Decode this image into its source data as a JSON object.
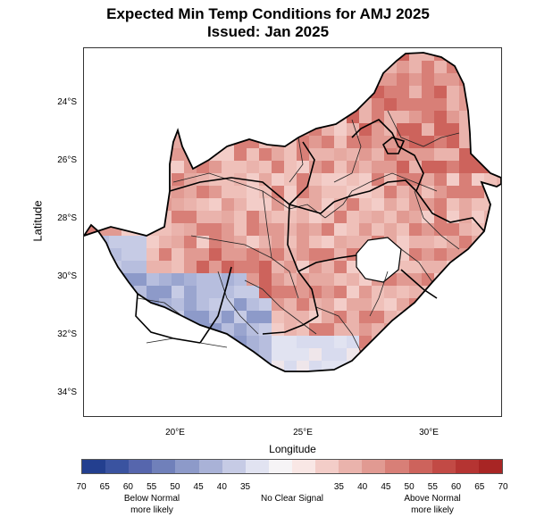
{
  "header": {
    "title_line1": "Expected Min Temp Conditions for AMJ 2025",
    "title_line2": "Issued: Jan 2025"
  },
  "map": {
    "y_axis_title": "Latitude",
    "x_axis_title": "Longitude",
    "y_ticks": [
      "24°S",
      "26°S",
      "28°S",
      "30°S",
      "32°S",
      "34°S"
    ],
    "x_ticks": [
      "20°E",
      "25°E",
      "30°E"
    ]
  },
  "legend": {
    "tick_labels": [
      "70",
      "65",
      "60",
      "55",
      "50",
      "45",
      "40",
      "35",
      "35",
      "40",
      "45",
      "50",
      "55",
      "60",
      "65",
      "70"
    ],
    "below_label": "Below Normal\nmore likely",
    "below_line1": "Below Normal",
    "below_line2": "more likely",
    "center_label": "No Clear Signal",
    "above_line1": "Above Normal",
    "above_line2": "more likely",
    "colors": [
      "#233f8f",
      "#3a53a0",
      "#5666ad",
      "#7080ba",
      "#8d9ac9",
      "#a9b2d7",
      "#c6cbe5",
      "#e1e3f1",
      "#f6f4f6",
      "#f9e7e5",
      "#f3cdc8",
      "#eab3ac",
      "#e19a92",
      "#d87f77",
      "#cd635c",
      "#c24a45",
      "#b53432",
      "#a82524"
    ]
  }
}
